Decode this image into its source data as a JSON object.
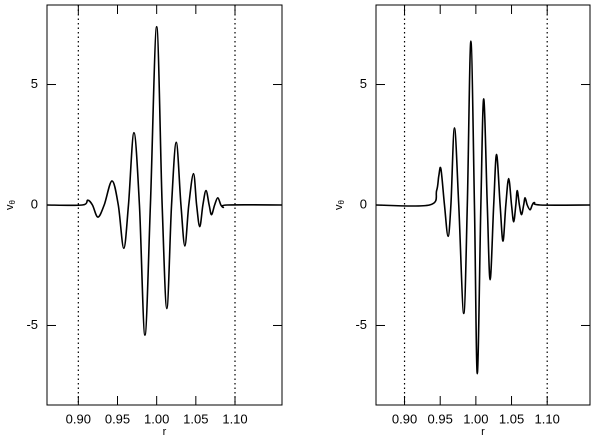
{
  "chart_data": [
    {
      "type": "line",
      "xlabel": "r",
      "ylabel": "v",
      "ylabel_sub": "θ",
      "xlim": [
        0.86,
        1.16
      ],
      "ylim": [
        -8.3,
        8.3
      ],
      "xticks": [
        {
          "value": 0.9,
          "label": "0.90"
        },
        {
          "value": 0.95,
          "label": "0.95"
        },
        {
          "value": 1.0,
          "label": "1.00"
        },
        {
          "value": 1.05,
          "label": "1.05"
        },
        {
          "value": 1.1,
          "label": "1.10"
        }
      ],
      "yticks": [
        -5,
        0,
        5
      ],
      "vlines": [
        0.9,
        1.1
      ],
      "color": "#000000",
      "x": [
        0.86,
        0.905,
        0.912,
        0.918,
        0.925,
        0.933,
        0.943,
        0.951,
        0.958,
        0.964,
        0.971,
        0.978,
        0.985,
        0.992,
        1.0,
        1.007,
        1.013,
        1.019,
        1.025,
        1.031,
        1.036,
        1.041,
        1.047,
        1.051,
        1.055,
        1.059,
        1.063,
        1.067,
        1.07,
        1.074,
        1.078,
        1.082,
        1.085,
        1.09,
        1.16
      ],
      "values": [
        0,
        0,
        0.2,
        0,
        -0.5,
        0,
        1.0,
        0,
        -1.8,
        0,
        3.0,
        0,
        -5.4,
        0,
        7.4,
        0,
        -4.3,
        0,
        2.6,
        0,
        -1.7,
        0,
        1.3,
        0,
        -0.9,
        0,
        0.6,
        0,
        -0.4,
        0,
        0.3,
        0,
        -0.1,
        0,
        0
      ]
    },
    {
      "type": "line",
      "xlabel": "r",
      "ylabel": "v",
      "ylabel_sub": "θ",
      "xlim": [
        0.86,
        1.16
      ],
      "ylim": [
        -8.3,
        8.3
      ],
      "xticks": [
        {
          "value": 0.9,
          "label": "0.90"
        },
        {
          "value": 0.95,
          "label": "0.95"
        },
        {
          "value": 1.0,
          "label": "1.00"
        },
        {
          "value": 1.05,
          "label": "1.05"
        },
        {
          "value": 1.1,
          "label": "1.10"
        }
      ],
      "yticks": [
        -5,
        0,
        5
      ],
      "vlines": [
        0.9,
        1.1
      ],
      "color": "#000000",
      "x": [
        0.86,
        0.935,
        0.945,
        0.948,
        0.951,
        0.956,
        0.961,
        0.965,
        0.97,
        0.976,
        0.983,
        0.988,
        0.993,
        0.998,
        1.002,
        1.007,
        1.011,
        1.016,
        1.02,
        1.025,
        1.029,
        1.034,
        1.038,
        1.042,
        1.046,
        1.05,
        1.053,
        1.056,
        1.058,
        1.061,
        1.064,
        1.067,
        1.069,
        1.072,
        1.076,
        1.079,
        1.082,
        1.09,
        1.16
      ],
      "values": [
        0,
        0,
        0.6,
        1.2,
        1.5,
        0,
        -1.3,
        0,
        3.2,
        0,
        -4.5,
        0,
        6.8,
        0,
        -7.0,
        0,
        4.4,
        0,
        -3.1,
        0,
        2.1,
        0,
        -1.5,
        0,
        1.1,
        0,
        -0.7,
        0,
        0.6,
        0,
        -0.4,
        0,
        0.3,
        0,
        -0.2,
        0,
        0.1,
        0,
        0
      ]
    }
  ]
}
